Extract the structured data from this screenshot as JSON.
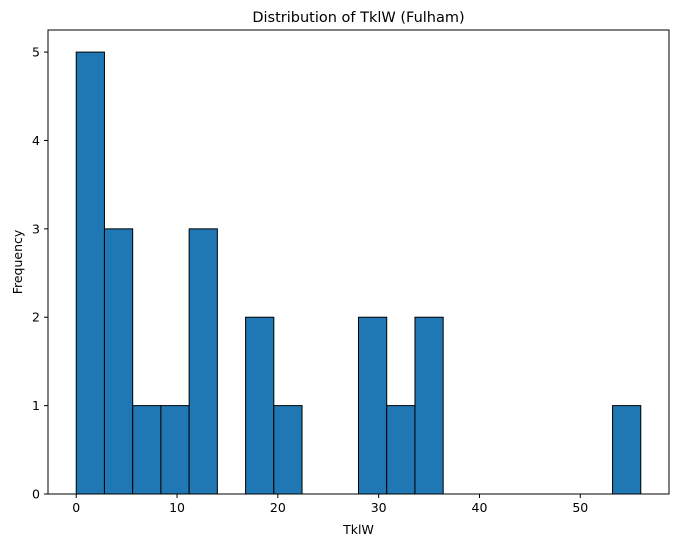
{
  "chart_data": {
    "type": "histogram",
    "title": "Distribution of TklW (Fulham)",
    "xlabel": "TklW",
    "ylabel": "Frequency",
    "xlim": [
      -2.8,
      58.8
    ],
    "ylim": [
      0,
      5.25
    ],
    "xticks": [
      0,
      10,
      20,
      30,
      40,
      50
    ],
    "yticks": [
      0,
      1,
      2,
      3,
      4,
      5
    ],
    "bin_edges": [
      0,
      2.8,
      5.6,
      8.4,
      11.2,
      14.0,
      16.8,
      19.6,
      22.4,
      25.2,
      28.0,
      30.8,
      33.6,
      36.4,
      39.2,
      42.0,
      44.8,
      47.6,
      50.4,
      53.2,
      56.0
    ],
    "counts": [
      5,
      3,
      1,
      1,
      3,
      0,
      2,
      1,
      0,
      0,
      2,
      1,
      2,
      0,
      0,
      0,
      0,
      0,
      0,
      1
    ],
    "bar_color": "#1f77b4",
    "edge_color": "#000000",
    "grid": false,
    "legend": "none"
  }
}
